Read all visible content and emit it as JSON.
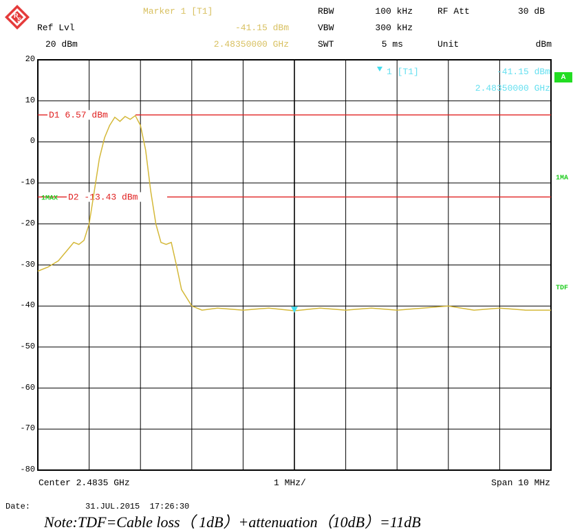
{
  "header": {
    "marker_title": "Marker 1 [T1]",
    "marker_level": "-41.15 dBm",
    "marker_freq": "2.48350000 GHz",
    "ref_lvl_label": "Ref Lvl",
    "ref_lvl_value": "20 dBm",
    "rbw_label": "RBW",
    "rbw_value": "100 kHz",
    "vbw_label": "VBW",
    "vbw_value": "300 kHz",
    "swt_label": "SWT",
    "swt_value": "5 ms",
    "rfatt_label": "RF Att",
    "rfatt_value": "30 dB",
    "unit_label": "Unit",
    "unit_value": "dBm"
  },
  "in_plot": {
    "marker_label": "1 [T1]",
    "marker_level": "-41.15 dBm",
    "marker_freq": "2.48350000 GHz",
    "a_badge": "A",
    "side_1ma": "1MA",
    "side_tdf": "TDF",
    "left_1max": "1MAX"
  },
  "footer": {
    "center": "Center 2.4835 GHz",
    "div": "1 MHz/",
    "span": "Span 10 MHz",
    "date_label": "Date:",
    "date_value": "31.JUL.2015  17:26:30",
    "note": "Note:TDF=Cable loss（ 1dB）+attenuation（10dB）=11dB"
  },
  "colors": {
    "trace": "#d4b838",
    "display_line": "#e02020",
    "marker": "#44ddee",
    "grid": "#000000",
    "badge": "#22dd22"
  },
  "chart_data": {
    "type": "line",
    "title": "",
    "xlabel": "",
    "ylabel": "",
    "x_unit": "GHz",
    "y_unit": "dBm",
    "xlim": [
      2.4785,
      2.4885
    ],
    "ylim": [
      -80,
      20
    ],
    "y_ticks": [
      "20",
      "10",
      "0",
      "-10",
      "-20",
      "-30",
      "-40",
      "-50",
      "-60",
      "-70",
      "-80"
    ],
    "grid": true,
    "display_lines": [
      {
        "name": "D1",
        "level": 6.57,
        "label": "D1 6.57 dBm"
      },
      {
        "name": "D2",
        "level": -13.43,
        "label": "D2 -13.43 dBm"
      }
    ],
    "marker": {
      "name": "1",
      "x": 2.4835,
      "y": -41.15
    },
    "series": [
      {
        "name": "1MAX",
        "x": [
          2.4785,
          2.4787,
          2.4789,
          2.4791,
          2.4792,
          2.4793,
          2.4794,
          2.4795,
          2.4796,
          2.4797,
          2.4798,
          2.4799,
          2.48,
          2.4801,
          2.4802,
          2.4803,
          2.4804,
          2.4805,
          2.4806,
          2.4807,
          2.4808,
          2.4809,
          2.481,
          2.4811,
          2.4812,
          2.4813,
          2.4815,
          2.4817,
          2.482,
          2.4825,
          2.483,
          2.4835,
          2.484,
          2.4845,
          2.485,
          2.4855,
          2.486,
          2.4865,
          2.487,
          2.4875,
          2.488,
          2.4885
        ],
        "values": [
          -31.5,
          -30.5,
          -29.0,
          -26.0,
          -24.5,
          -25.0,
          -24.0,
          -20.0,
          -12.0,
          -4.0,
          1.0,
          4.0,
          6.0,
          5.0,
          6.2,
          5.5,
          6.4,
          4.0,
          -2.0,
          -12.0,
          -20.0,
          -24.5,
          -25.0,
          -24.5,
          -30.0,
          -36.0,
          -40.0,
          -41.0,
          -40.5,
          -41.0,
          -40.5,
          -41.15,
          -40.5,
          -41.0,
          -40.5,
          -41.0,
          -40.5,
          -40.0,
          -41.0,
          -40.5,
          -41.0,
          -41.0
        ]
      }
    ]
  }
}
